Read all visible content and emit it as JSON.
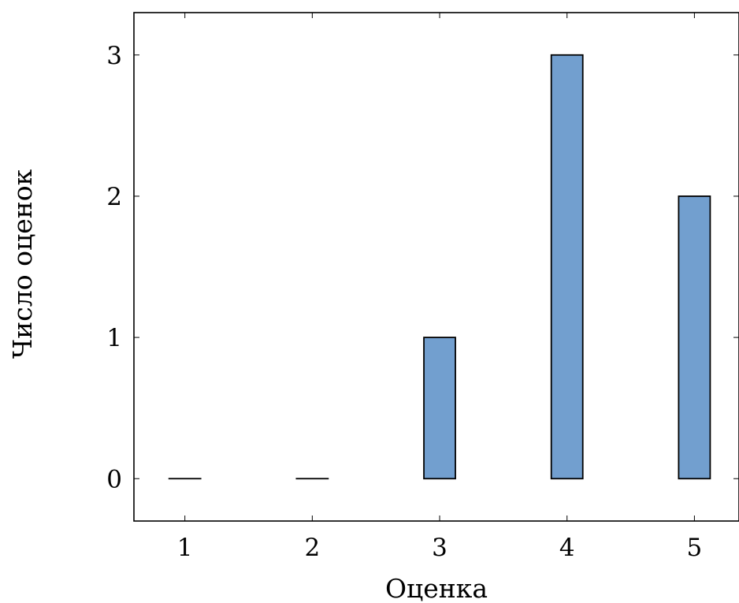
{
  "chart_data": {
    "type": "bar",
    "title": "",
    "xlabel": "Оценка",
    "ylabel": "Число оценок",
    "categories": [
      "1",
      "2",
      "3",
      "4",
      "5"
    ],
    "x": [
      1,
      2,
      3,
      4,
      5
    ],
    "values": [
      0,
      0,
      1,
      3,
      2
    ],
    "xlim": [
      0.6,
      5.35
    ],
    "ylim": [
      -0.3,
      3.3
    ],
    "yticks": [
      0,
      1,
      2,
      3
    ],
    "grid": false,
    "legend": "none",
    "bar_color": "#729fcf",
    "bar_edge_color": "#000000"
  }
}
